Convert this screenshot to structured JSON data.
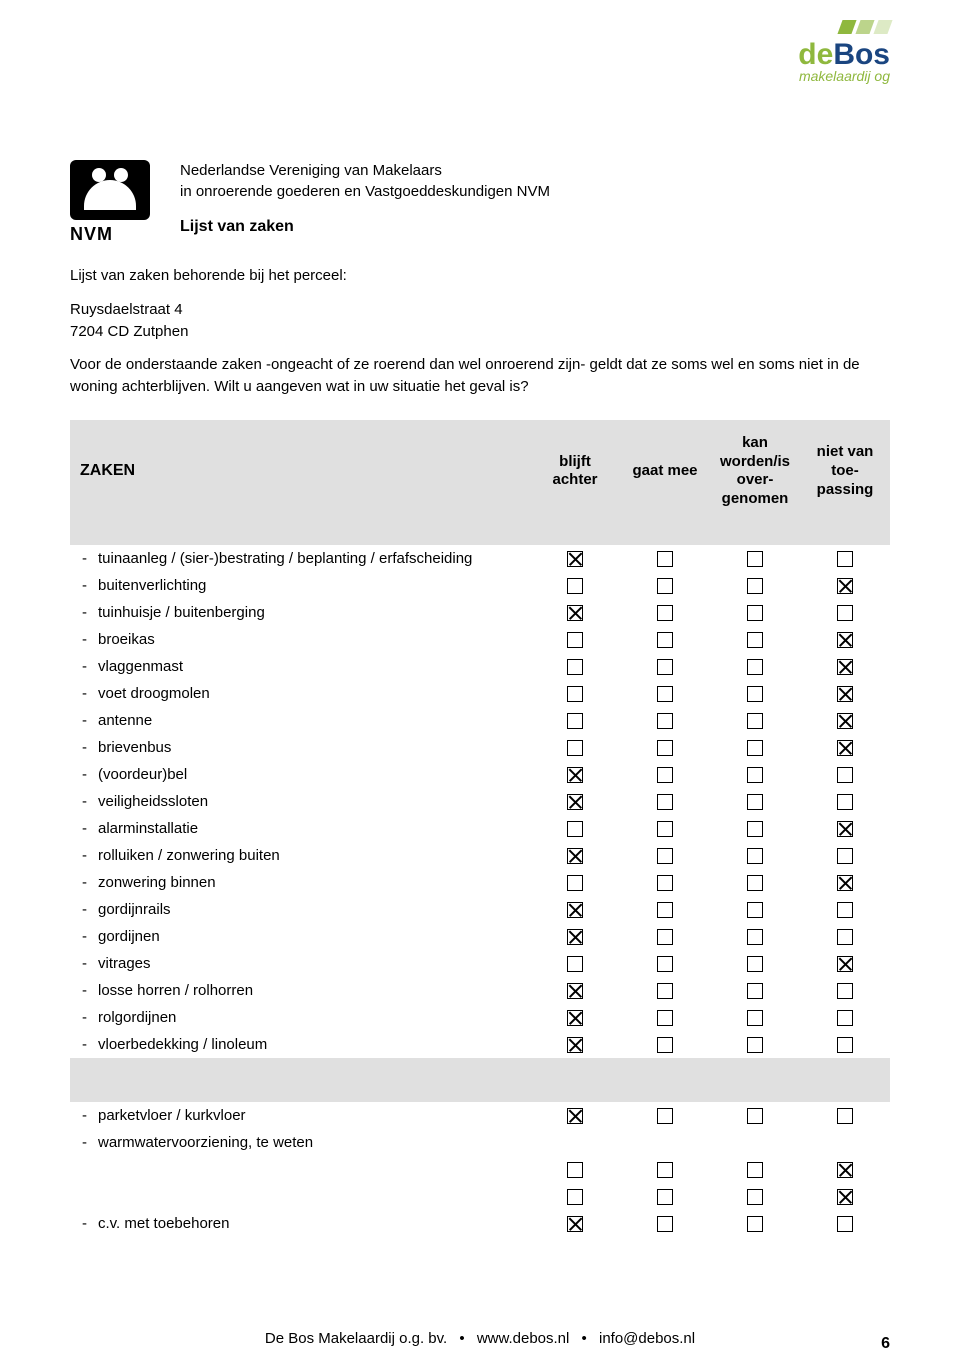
{
  "logo": {
    "accent_prefix": "de",
    "main": "Bos",
    "subtitle": "makelaardij og"
  },
  "nvm_label": "NVM",
  "header": {
    "line1": "Nederlandse Vereniging van Makelaars",
    "line2": "in onroerende goederen en Vastgoeddeskundigen NVM",
    "doc_title": "Lijst van zaken"
  },
  "intro": {
    "perceel_label": "Lijst van zaken behorende bij het perceel:",
    "address_line1": "Ruysdaelstraat 4",
    "address_line2": "7204 CD  Zutphen",
    "body": "Voor de onderstaande zaken -ongeacht of ze roerend dan wel onroerend zijn- geldt dat ze soms wel en soms niet in de woning achterblijven. Wilt u aangeven wat in uw situatie het geval is?"
  },
  "table": {
    "head": {
      "zaken": "ZAKEN",
      "c1": "blijft achter",
      "c2": "gaat mee",
      "c3": "kan worden/is over­genomen",
      "c4": "niet van toe­passing"
    },
    "rows": [
      {
        "label": "tuinaanleg / (sier-)bestrating / beplanting / erfafscheiding",
        "v": [
          true,
          false,
          false,
          false
        ]
      },
      {
        "label": "buitenverlichting",
        "v": [
          false,
          false,
          false,
          true
        ]
      },
      {
        "label": "tuinhuisje / buitenberging",
        "v": [
          true,
          false,
          false,
          false
        ]
      },
      {
        "label": "broeikas",
        "v": [
          false,
          false,
          false,
          true
        ]
      },
      {
        "label": "vlaggenmast",
        "v": [
          false,
          false,
          false,
          true
        ]
      },
      {
        "label": "voet droogmolen",
        "v": [
          false,
          false,
          false,
          true
        ]
      },
      {
        "label": "antenne",
        "v": [
          false,
          false,
          false,
          true
        ]
      },
      {
        "label": "brievenbus",
        "v": [
          false,
          false,
          false,
          true
        ]
      },
      {
        "label": "(voordeur)bel",
        "v": [
          true,
          false,
          false,
          false
        ]
      },
      {
        "label": "veiligheidssloten",
        "v": [
          true,
          false,
          false,
          false
        ]
      },
      {
        "label": "alarminstallatie",
        "v": [
          false,
          false,
          false,
          true
        ]
      },
      {
        "label": "rolluiken / zonwering buiten",
        "v": [
          true,
          false,
          false,
          false
        ]
      },
      {
        "label": "zonwering binnen",
        "v": [
          false,
          false,
          false,
          true
        ]
      },
      {
        "label": "gordijnrails",
        "v": [
          true,
          false,
          false,
          false
        ]
      },
      {
        "label": "gordijnen",
        "v": [
          true,
          false,
          false,
          false
        ]
      },
      {
        "label": "vitrages",
        "v": [
          false,
          false,
          false,
          true
        ]
      },
      {
        "label": "losse horren / rolhorren",
        "v": [
          true,
          false,
          false,
          false
        ]
      },
      {
        "label": "rolgordijnen",
        "v": [
          true,
          false,
          false,
          false
        ]
      },
      {
        "label": "vloerbedekking / linoleum",
        "v": [
          true,
          false,
          false,
          false
        ]
      }
    ],
    "rows2": [
      {
        "label": "parketvloer / kurkvloer",
        "v": [
          true,
          false,
          false,
          false
        ]
      },
      {
        "label": "warmwatervoorziening, te weten",
        "v": null
      },
      {
        "label": "",
        "indent": true,
        "v": [
          false,
          false,
          false,
          true
        ]
      },
      {
        "label": "",
        "indent": true,
        "v": [
          false,
          false,
          false,
          true
        ]
      },
      {
        "label": "c.v. met toebehoren",
        "v": [
          true,
          false,
          false,
          false
        ]
      }
    ]
  },
  "footer": {
    "text1": "De Bos Makelaardij o.g. bv.",
    "text2": "www.debos.nl",
    "text3": "info@debos.nl",
    "sep": "•"
  },
  "pagenum": "6"
}
